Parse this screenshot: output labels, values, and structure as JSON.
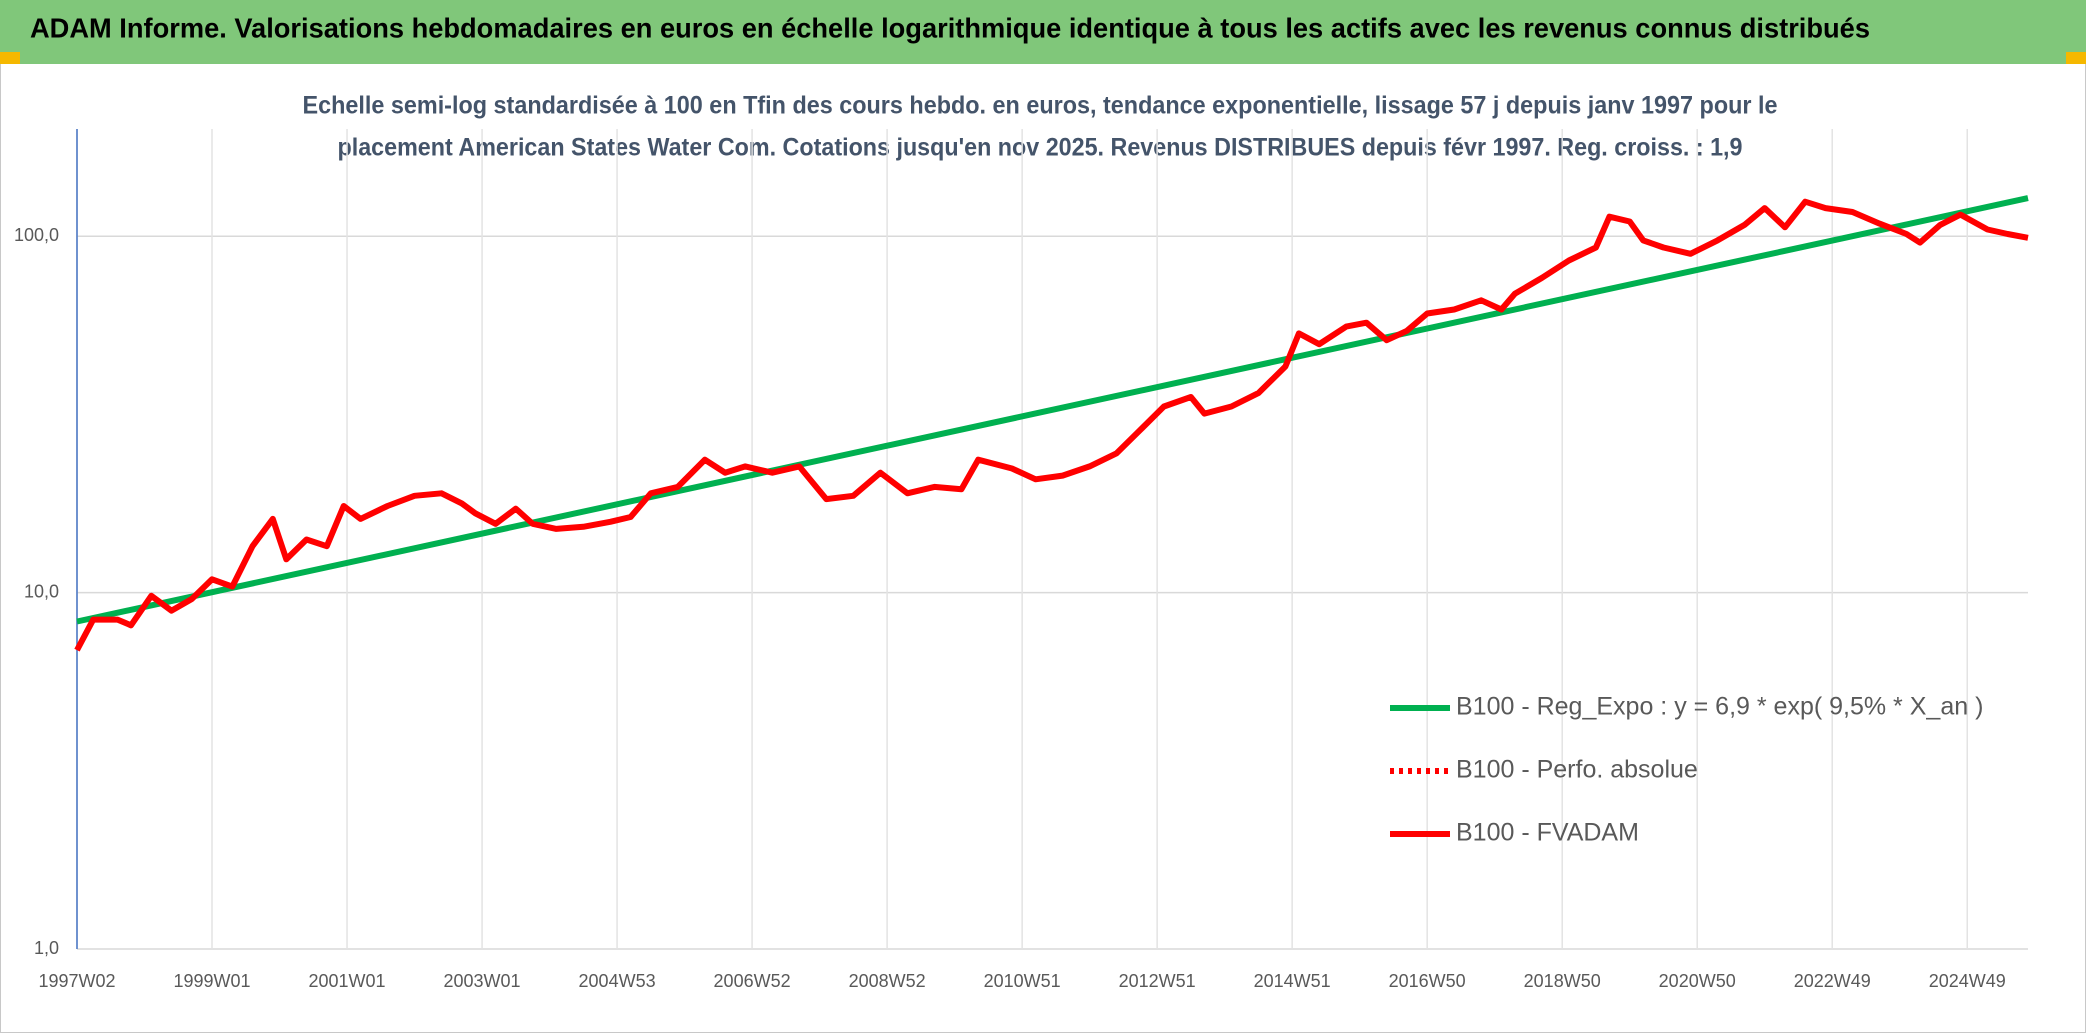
{
  "chart_data": {
    "type": "line",
    "title": "ADAM Informe. Valorisations hebdomadaires en euros en échelle logarithmique identique à tous les actifs avec les revenus connus distribués",
    "subtitle": [
      "Echelle semi-log standardisée à 100 en Tfin des cours hebdo. en euros, tendance exponentielle, lissage 57 j depuis janv 1997 pour le",
      "placement American States Water Com. Cotations jusqu'en nov 2025. Revenus DISTRIBUES depuis févr 1997. Reg. croiss. : 1,9"
    ],
    "log_y": true,
    "grid": true,
    "legend": "right",
    "xlim": [
      1997.0,
      2025.9
    ],
    "xticks": [
      {
        "value": 1997,
        "label": "1997W02"
      },
      {
        "value": 1999,
        "label": "1999W01"
      },
      {
        "value": 2001,
        "label": "2001W01"
      },
      {
        "value": 2003,
        "label": "2003W01"
      },
      {
        "value": 2005,
        "label": "2004W53"
      },
      {
        "value": 2007,
        "label": "2006W52"
      },
      {
        "value": 2009,
        "label": "2008W52"
      },
      {
        "value": 2011,
        "label": "2010W51"
      },
      {
        "value": 2013,
        "label": "2012W51"
      },
      {
        "value": 2015,
        "label": "2014W51"
      },
      {
        "value": 2017,
        "label": "2016W50"
      },
      {
        "value": 2019,
        "label": "2018W50"
      },
      {
        "value": 2021,
        "label": "2020W50"
      },
      {
        "value": 2023,
        "label": "2022W49"
      },
      {
        "value": 2025,
        "label": "2024W49"
      }
    ],
    "ylim": [
      1,
      200
    ],
    "yticks": [
      {
        "value": 1,
        "label": "1,0"
      },
      {
        "value": 10,
        "label": "10,0"
      },
      {
        "value": 100,
        "label": "100,0"
      }
    ],
    "series": [
      {
        "name": "B100 - Reg_Expo : y = 6,9 * exp( 9,5% *  X_an )",
        "color": "#00b050",
        "style": "solid",
        "x": [
          1997.0,
          2025.9
        ],
        "values": [
          8.3,
          128
        ]
      },
      {
        "name": "B100 - Perfo. absolue",
        "color": "#ff0000",
        "style": "dotted"
      },
      {
        "name": "B100 - FVADAM",
        "color": "#ff0000",
        "style": "solid",
        "x": [
          1997.0,
          1997.24,
          1997.6,
          1997.8,
          1998.1,
          1998.4,
          1998.7,
          1999.0,
          1999.3,
          1999.6,
          1999.9,
          2000.1,
          2000.4,
          2000.7,
          2000.95,
          2001.2,
          2001.6,
          2002.0,
          2002.4,
          2002.7,
          2002.9,
          2003.2,
          2003.5,
          2003.75,
          2004.1,
          2004.5,
          2004.9,
          2005.2,
          2005.5,
          2005.9,
          2006.3,
          2006.6,
          2006.9,
          2007.3,
          2007.7,
          2008.1,
          2008.5,
          2008.9,
          2009.3,
          2009.7,
          2010.1,
          2010.35,
          2010.85,
          2011.2,
          2011.6,
          2012.0,
          2012.4,
          2012.7,
          2013.1,
          2013.5,
          2013.7,
          2014.1,
          2014.5,
          2014.9,
          2015.1,
          2015.4,
          2015.8,
          2016.1,
          2016.4,
          2016.7,
          2017.0,
          2017.4,
          2017.8,
          2018.1,
          2018.3,
          2018.7,
          2019.1,
          2019.5,
          2019.7,
          2020.0,
          2020.2,
          2020.5,
          2020.9,
          2021.3,
          2021.7,
          2022.0,
          2022.3,
          2022.6,
          2022.9,
          2023.3,
          2023.7,
          2024.1,
          2024.3,
          2024.6,
          2024.9,
          2025.3,
          2025.6,
          2025.9
        ],
        "values": [
          6.9,
          8.4,
          8.4,
          8.1,
          9.8,
          8.9,
          9.6,
          10.9,
          10.4,
          13.5,
          16.1,
          12.4,
          14.1,
          13.5,
          17.5,
          16.1,
          17.5,
          18.7,
          19.0,
          17.8,
          16.7,
          15.6,
          17.2,
          15.6,
          15.1,
          15.3,
          15.8,
          16.3,
          19.0,
          19.8,
          23.6,
          21.7,
          22.6,
          21.7,
          22.6,
          18.3,
          18.7,
          21.7,
          19.0,
          19.8,
          19.5,
          23.6,
          22.3,
          20.8,
          21.3,
          22.6,
          24.6,
          28.0,
          33.3,
          35.4,
          31.8,
          33.3,
          36.3,
          43.1,
          53.4,
          49.8,
          55.8,
          57.2,
          51.1,
          54.3,
          60.7,
          62.3,
          66.1,
          62.3,
          69.0,
          76.4,
          85.5,
          93.0,
          113.5,
          110,
          97.4,
          93,
          89.3,
          97.4,
          107.6,
          120,
          106,
          125,
          120,
          117,
          108.5,
          101.5,
          96,
          107.6,
          115,
          104.5,
          101.5,
          99
        ]
      }
    ]
  }
}
